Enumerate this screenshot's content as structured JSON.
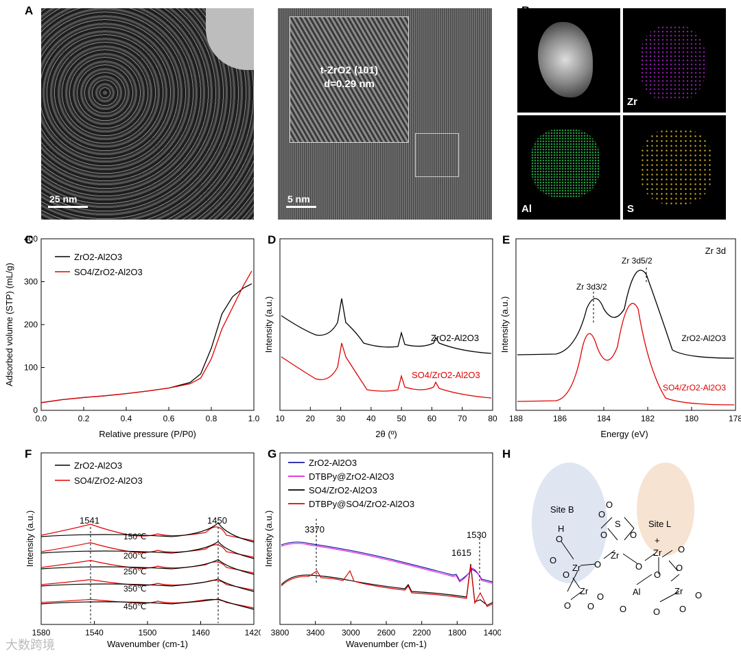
{
  "panels": {
    "A": "A",
    "B": "B",
    "C": "C",
    "D": "D",
    "E": "E",
    "F": "F",
    "G": "G",
    "H": "H"
  },
  "panelA": {
    "scale1": "25 nm",
    "scale2": "5 nm",
    "inset_line1": "t-ZrO2 (101)",
    "inset_line2": "d=0.29 nm"
  },
  "panelB": {
    "zr": "Zr",
    "al": "Al",
    "s": "S"
  },
  "watermark": "大数跨境",
  "chart_data": [
    {
      "id": "C",
      "type": "line",
      "xlabel": "Relative pressure (P/P0)",
      "ylabel": "Adsorbed volume (STP) (mL/g)",
      "xlim": [
        0,
        1.0
      ],
      "ylim": [
        0,
        400
      ],
      "xticks": [
        "0.0",
        "0.2",
        "0.4",
        "0.6",
        "0.8",
        "1.0"
      ],
      "yticks": [
        "0",
        "100",
        "200",
        "300",
        "400"
      ],
      "series": [
        {
          "name": "ZrO2-Al2O3",
          "color": "#000000",
          "x": [
            0.0,
            0.1,
            0.2,
            0.3,
            0.4,
            0.5,
            0.6,
            0.7,
            0.75,
            0.8,
            0.85,
            0.9,
            0.95,
            0.99
          ],
          "y": [
            18,
            25,
            30,
            34,
            39,
            45,
            52,
            65,
            85,
            145,
            225,
            265,
            285,
            295
          ]
        },
        {
          "name": "SO4/ZrO2-Al2O3",
          "color": "#e00000",
          "x": [
            0.0,
            0.1,
            0.2,
            0.3,
            0.4,
            0.5,
            0.6,
            0.7,
            0.75,
            0.8,
            0.85,
            0.9,
            0.95,
            0.99
          ],
          "y": [
            18,
            25,
            30,
            34,
            39,
            45,
            52,
            62,
            75,
            120,
            190,
            240,
            290,
            325
          ]
        }
      ]
    },
    {
      "id": "D",
      "type": "line",
      "xlabel": "2θ (º)",
      "ylabel": "Intensity (a.u.)",
      "xlim": [
        10,
        80
      ],
      "xticks": [
        "10",
        "20",
        "30",
        "40",
        "50",
        "60",
        "70",
        "80"
      ],
      "series": [
        {
          "name": "ZrO2-Al2O3",
          "color": "#000000"
        },
        {
          "name": "SO4/ZrO2-Al2O3",
          "color": "#e00000"
        }
      ]
    },
    {
      "id": "E",
      "type": "line",
      "title": "Zr 3d",
      "xlabel": "Energy (eV)",
      "ylabel": "Intensity (a.u.)",
      "xlim": [
        188,
        178
      ],
      "xticks": [
        "188",
        "186",
        "184",
        "182",
        "180",
        "178"
      ],
      "annotations": [
        "Zr 3d3/2",
        "Zr 3d5/2"
      ],
      "series": [
        {
          "name": "ZrO2-Al2O3",
          "color": "#000000"
        },
        {
          "name": "SO4/ZrO2-Al2O3",
          "color": "#e00000"
        }
      ]
    },
    {
      "id": "F",
      "type": "line",
      "xlabel": "Wavenumber (cm-1)",
      "ylabel": "Intensity (a.u.)",
      "xlim": [
        1580,
        1420
      ],
      "xticks": [
        "1580",
        "1540",
        "1500",
        "1460",
        "1420"
      ],
      "peaks": [
        "1541",
        "1450"
      ],
      "temperatures": [
        "150℃",
        "200℃",
        "250℃",
        "350℃",
        "450℃"
      ],
      "series": [
        {
          "name": "ZrO2-Al2O3",
          "color": "#000000"
        },
        {
          "name": "SO4/ZrO2-Al2O3",
          "color": "#e00000"
        }
      ]
    },
    {
      "id": "G",
      "type": "line",
      "xlabel": "Wavenumber (cm-1)",
      "ylabel": "Intensity (a.u.)",
      "xlim": [
        3800,
        1400
      ],
      "xticks": [
        "3800",
        "3400",
        "3000",
        "2600",
        "2200",
        "1800",
        "1400"
      ],
      "peaks": [
        "3370",
        "1615",
        "1530"
      ],
      "series": [
        {
          "name": "ZrO2-Al2O3",
          "color": "#1a1aa0"
        },
        {
          "name": "DTBPy@ZrO2-Al2O3",
          "color": "#e020e0"
        },
        {
          "name": "SO4/ZrO2-Al2O3",
          "color": "#000000"
        },
        {
          "name": "DTBPy@SO4/ZrO2-Al2O3",
          "color": "#e00000"
        }
      ]
    }
  ],
  "panelH": {
    "siteB": "Site B",
    "siteL": "Site L",
    "plus": "+",
    "zr": "Zr",
    "al": "Al",
    "s": "S",
    "o": "O",
    "h": "H"
  }
}
